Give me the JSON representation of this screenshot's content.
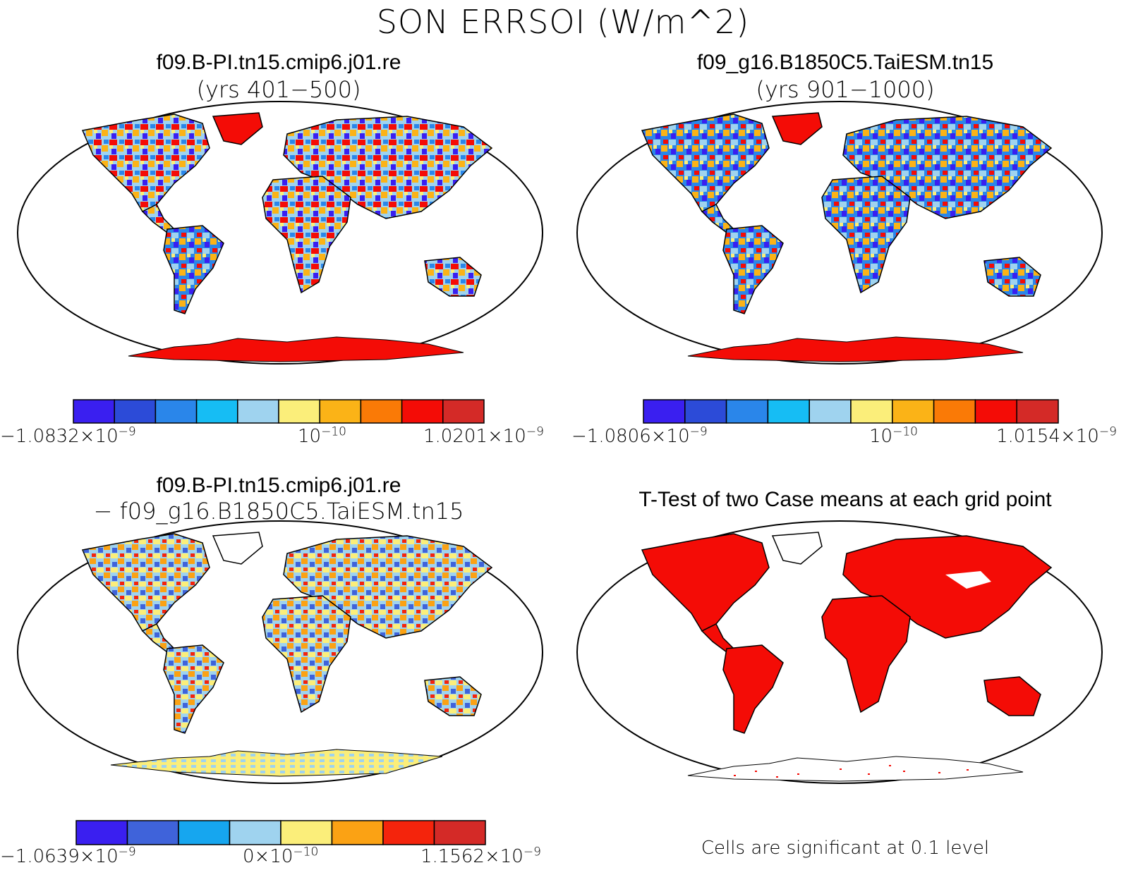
{
  "figure": {
    "title": "SON ERRSOI (W/m^2)"
  },
  "panels": [
    {
      "id": "case1",
      "title": "f09.B-PI.tn15.cmip6.j01.re",
      "subtitle": "(yrs 401−500)",
      "colorbar": {
        "colors": [
          "#3a1ff0",
          "#2c4bd8",
          "#2a86ea",
          "#16bdf4",
          "#9fd3ef",
          "#fbee7a",
          "#fbb317",
          "#fa7a06",
          "#f40c06",
          "#d42a27"
        ],
        "label_min": {
          "mant": "−1.0832×10",
          "exp": "−9"
        },
        "label_mid": {
          "mant": "10",
          "exp": "−10"
        },
        "label_max": {
          "mant": "1.0201×10",
          "exp": "−9"
        }
      }
    },
    {
      "id": "case2",
      "title": "f09_g16.B1850C5.TaiESM.tn15",
      "subtitle": "(yrs 901−1000)",
      "colorbar": {
        "colors": [
          "#3a1ff0",
          "#2c4bd8",
          "#2a86ea",
          "#16bdf4",
          "#9fd3ef",
          "#fbee7a",
          "#fbb317",
          "#fa7a06",
          "#f40c06",
          "#d42a27"
        ],
        "label_min": {
          "mant": "−1.0806×10",
          "exp": "−9"
        },
        "label_mid": {
          "mant": "10",
          "exp": "−10"
        },
        "label_max": {
          "mant": "1.0154×10",
          "exp": "−9"
        }
      }
    },
    {
      "id": "diff",
      "title": "f09.B-PI.tn15.cmip6.j01.re",
      "subtitle": "− f09_g16.B1850C5.TaiESM.tn15",
      "colorbar": {
        "colors": [
          "#3a1ff0",
          "#3f63da",
          "#16a6ef",
          "#9fd3ef",
          "#fbee7a",
          "#fba214",
          "#f4240c",
          "#d42a27"
        ],
        "label_min": {
          "mant": "−1.0639×10",
          "exp": "−9"
        },
        "label_mid": {
          "mant": "0×10",
          "exp": "−10"
        },
        "label_max": {
          "mant": "1.1562×10",
          "exp": "−9"
        }
      }
    },
    {
      "id": "ttest",
      "title": "T-Test of two Case means at each grid point",
      "note": "Cells are significant at 0.1 level"
    }
  ]
}
